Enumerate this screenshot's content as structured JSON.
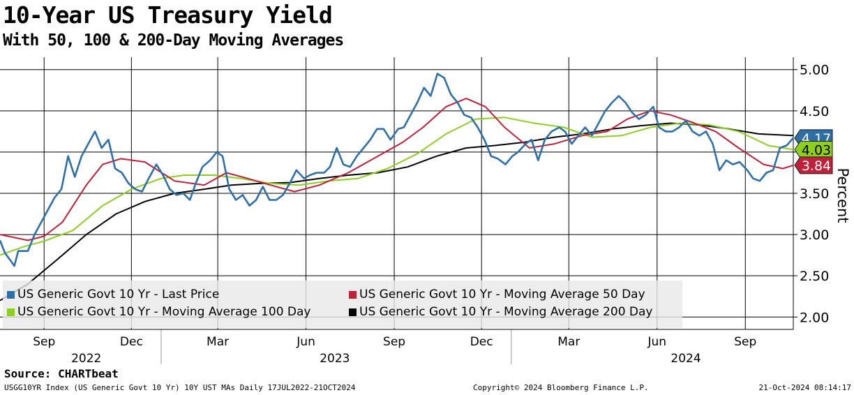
{
  "header": {
    "title": "10-Year US Treasury Yield",
    "subtitle": "With 50, 100 & 200-Day Moving Averages"
  },
  "footer": {
    "source": "Source: CHARTbeat",
    "index_info": "USGG10YR Index (US Generic Govt 10 Yr) 10Y UST MAs  Daily 17JUL2022-21OCT2024",
    "copyright": "Copyright© 2024 Bloomberg Finance L.P.",
    "timestamp": "21-Oct-2024 08:14:17"
  },
  "colors": {
    "last_price": "#2f6fa8",
    "ma50": "#c0213a",
    "ma100": "#8ccf1f",
    "ma200": "#000000",
    "badge_last": "#2f6fa8",
    "badge_ma100": "#8ccf1f",
    "badge_ma50": "#c0213a",
    "legend_bg": "#e8e8e8"
  },
  "chart_data": {
    "type": "line",
    "ylabel": "Percent",
    "y_axis_side": "right",
    "ylim": [
      1.85,
      5.15
    ],
    "yticks": [
      "2.00",
      "2.50",
      "3.00",
      "3.50",
      "4.00",
      "4.50",
      "5.00"
    ],
    "x_range": [
      "2022-07-17",
      "2024-10-21"
    ],
    "x_month_ticks": [
      {
        "date": "2022-09-01",
        "label": "Sep"
      },
      {
        "date": "2022-12-01",
        "label": "Dec"
      },
      {
        "date": "2023-03-01",
        "label": "Mar"
      },
      {
        "date": "2023-06-01",
        "label": "Jun"
      },
      {
        "date": "2023-09-01",
        "label": "Sep"
      },
      {
        "date": "2023-12-01",
        "label": "Dec"
      },
      {
        "date": "2024-03-01",
        "label": "Mar"
      },
      {
        "date": "2024-06-01",
        "label": "Jun"
      },
      {
        "date": "2024-09-01",
        "label": "Sep"
      }
    ],
    "x_year_labels": [
      {
        "date": "2022-10-15",
        "label": "2022"
      },
      {
        "date": "2023-07-01",
        "label": "2023"
      },
      {
        "date": "2024-07-01",
        "label": "2024"
      }
    ],
    "x_year_separators": [
      "2023-01-01",
      "2024-01-01"
    ],
    "grid": true,
    "legend_position": "bottom-left",
    "last_values": {
      "last_price": "4.17",
      "ma100": "4.03",
      "ma50": "3.84"
    },
    "series": [
      {
        "key": "last_price",
        "name": "US Generic Govt 10 Yr - Last Price",
        "points": [
          [
            "2022-07-17",
            2.93
          ],
          [
            "2022-07-22",
            2.78
          ],
          [
            "2022-08-01",
            2.62
          ],
          [
            "2022-08-05",
            2.8
          ],
          [
            "2022-08-15",
            2.8
          ],
          [
            "2022-08-22",
            3.0
          ],
          [
            "2022-08-29",
            3.15
          ],
          [
            "2022-09-05",
            3.3
          ],
          [
            "2022-09-12",
            3.45
          ],
          [
            "2022-09-19",
            3.55
          ],
          [
            "2022-09-26",
            3.95
          ],
          [
            "2022-10-03",
            3.7
          ],
          [
            "2022-10-10",
            3.95
          ],
          [
            "2022-10-17",
            4.1
          ],
          [
            "2022-10-24",
            4.25
          ],
          [
            "2022-10-31",
            4.05
          ],
          [
            "2022-11-07",
            4.15
          ],
          [
            "2022-11-14",
            3.8
          ],
          [
            "2022-11-21",
            3.75
          ],
          [
            "2022-11-28",
            3.62
          ],
          [
            "2022-12-05",
            3.55
          ],
          [
            "2022-12-12",
            3.52
          ],
          [
            "2022-12-19",
            3.68
          ],
          [
            "2022-12-27",
            3.85
          ],
          [
            "2023-01-03",
            3.72
          ],
          [
            "2023-01-10",
            3.55
          ],
          [
            "2023-01-17",
            3.48
          ],
          [
            "2023-01-24",
            3.5
          ],
          [
            "2023-01-31",
            3.42
          ],
          [
            "2023-02-06",
            3.62
          ],
          [
            "2023-02-13",
            3.82
          ],
          [
            "2023-02-21",
            3.9
          ],
          [
            "2023-02-28",
            4.0
          ],
          [
            "2023-03-06",
            3.95
          ],
          [
            "2023-03-13",
            3.55
          ],
          [
            "2023-03-20",
            3.42
          ],
          [
            "2023-03-27",
            3.48
          ],
          [
            "2023-04-03",
            3.35
          ],
          [
            "2023-04-10",
            3.42
          ],
          [
            "2023-04-17",
            3.58
          ],
          [
            "2023-04-24",
            3.42
          ],
          [
            "2023-05-01",
            3.42
          ],
          [
            "2023-05-08",
            3.48
          ],
          [
            "2023-05-15",
            3.62
          ],
          [
            "2023-05-22",
            3.78
          ],
          [
            "2023-05-30",
            3.68
          ],
          [
            "2023-06-05",
            3.72
          ],
          [
            "2023-06-12",
            3.75
          ],
          [
            "2023-06-20",
            3.75
          ],
          [
            "2023-06-26",
            3.82
          ],
          [
            "2023-07-03",
            4.05
          ],
          [
            "2023-07-10",
            3.85
          ],
          [
            "2023-07-17",
            3.82
          ],
          [
            "2023-07-24",
            3.95
          ],
          [
            "2023-07-31",
            4.05
          ],
          [
            "2023-08-07",
            4.15
          ],
          [
            "2023-08-14",
            4.28
          ],
          [
            "2023-08-21",
            4.28
          ],
          [
            "2023-08-28",
            4.15
          ],
          [
            "2023-09-05",
            4.28
          ],
          [
            "2023-09-11",
            4.3
          ],
          [
            "2023-09-18",
            4.45
          ],
          [
            "2023-09-25",
            4.6
          ],
          [
            "2023-10-02",
            4.78
          ],
          [
            "2023-10-09",
            4.68
          ],
          [
            "2023-10-16",
            4.95
          ],
          [
            "2023-10-23",
            4.9
          ],
          [
            "2023-10-30",
            4.7
          ],
          [
            "2023-11-06",
            4.6
          ],
          [
            "2023-11-13",
            4.45
          ],
          [
            "2023-11-20",
            4.42
          ],
          [
            "2023-11-27",
            4.3
          ],
          [
            "2023-12-04",
            4.15
          ],
          [
            "2023-12-11",
            3.95
          ],
          [
            "2023-12-18",
            3.92
          ],
          [
            "2023-12-26",
            3.85
          ],
          [
            "2024-01-02",
            3.95
          ],
          [
            "2024-01-08",
            4.0
          ],
          [
            "2024-01-16",
            4.1
          ],
          [
            "2024-01-22",
            4.15
          ],
          [
            "2024-01-29",
            3.9
          ],
          [
            "2024-02-05",
            4.15
          ],
          [
            "2024-02-12",
            4.25
          ],
          [
            "2024-02-20",
            4.3
          ],
          [
            "2024-02-26",
            4.25
          ],
          [
            "2024-03-04",
            4.1
          ],
          [
            "2024-03-11",
            4.2
          ],
          [
            "2024-03-18",
            4.3
          ],
          [
            "2024-03-25",
            4.2
          ],
          [
            "2024-04-01",
            4.35
          ],
          [
            "2024-04-08",
            4.5
          ],
          [
            "2024-04-15",
            4.6
          ],
          [
            "2024-04-22",
            4.68
          ],
          [
            "2024-04-29",
            4.6
          ],
          [
            "2024-05-06",
            4.48
          ],
          [
            "2024-05-13",
            4.4
          ],
          [
            "2024-05-20",
            4.45
          ],
          [
            "2024-05-28",
            4.55
          ],
          [
            "2024-06-03",
            4.3
          ],
          [
            "2024-06-10",
            4.25
          ],
          [
            "2024-06-17",
            4.25
          ],
          [
            "2024-06-24",
            4.3
          ],
          [
            "2024-07-01",
            4.38
          ],
          [
            "2024-07-08",
            4.25
          ],
          [
            "2024-07-15",
            4.2
          ],
          [
            "2024-07-22",
            4.25
          ],
          [
            "2024-07-29",
            4.1
          ],
          [
            "2024-08-05",
            3.78
          ],
          [
            "2024-08-12",
            3.9
          ],
          [
            "2024-08-19",
            3.85
          ],
          [
            "2024-08-26",
            3.88
          ],
          [
            "2024-09-03",
            3.78
          ],
          [
            "2024-09-09",
            3.68
          ],
          [
            "2024-09-16",
            3.65
          ],
          [
            "2024-09-23",
            3.75
          ],
          [
            "2024-09-30",
            3.78
          ],
          [
            "2024-10-07",
            4.05
          ],
          [
            "2024-10-14",
            4.08
          ],
          [
            "2024-10-21",
            4.17
          ]
        ]
      },
      {
        "key": "ma50",
        "name": "US Generic Govt 10 Yr - Moving Average 50 Day",
        "points": [
          [
            "2022-07-17",
            3.0
          ],
          [
            "2022-08-15",
            2.93
          ],
          [
            "2022-09-01",
            2.98
          ],
          [
            "2022-09-20",
            3.15
          ],
          [
            "2022-10-15",
            3.6
          ],
          [
            "2022-11-01",
            3.85
          ],
          [
            "2022-11-20",
            3.92
          ],
          [
            "2022-12-15",
            3.88
          ],
          [
            "2023-01-15",
            3.65
          ],
          [
            "2023-02-15",
            3.6
          ],
          [
            "2023-03-10",
            3.75
          ],
          [
            "2023-04-01",
            3.68
          ],
          [
            "2023-04-25",
            3.6
          ],
          [
            "2023-05-20",
            3.52
          ],
          [
            "2023-06-15",
            3.6
          ],
          [
            "2023-07-15",
            3.75
          ],
          [
            "2023-08-15",
            3.95
          ],
          [
            "2023-09-10",
            4.12
          ],
          [
            "2023-10-01",
            4.3
          ],
          [
            "2023-10-25",
            4.55
          ],
          [
            "2023-11-15",
            4.65
          ],
          [
            "2023-12-05",
            4.55
          ],
          [
            "2023-12-25",
            4.3
          ],
          [
            "2024-01-20",
            4.05
          ],
          [
            "2024-02-15",
            4.1
          ],
          [
            "2024-03-15",
            4.2
          ],
          [
            "2024-04-10",
            4.25
          ],
          [
            "2024-05-01",
            4.4
          ],
          [
            "2024-05-25",
            4.5
          ],
          [
            "2024-06-15",
            4.45
          ],
          [
            "2024-07-10",
            4.35
          ],
          [
            "2024-08-01",
            4.25
          ],
          [
            "2024-08-25",
            4.05
          ],
          [
            "2024-09-20",
            3.85
          ],
          [
            "2024-10-10",
            3.8
          ],
          [
            "2024-10-21",
            3.84
          ]
        ]
      },
      {
        "key": "ma100",
        "name": "US Generic Govt 10 Yr - Moving Average 100 Day",
        "points": [
          [
            "2022-07-17",
            2.75
          ],
          [
            "2022-08-10",
            2.85
          ],
          [
            "2022-09-01",
            2.92
          ],
          [
            "2022-10-01",
            3.05
          ],
          [
            "2022-11-01",
            3.35
          ],
          [
            "2022-12-01",
            3.55
          ],
          [
            "2023-01-01",
            3.68
          ],
          [
            "2023-01-25",
            3.72
          ],
          [
            "2023-02-25",
            3.72
          ],
          [
            "2023-03-25",
            3.68
          ],
          [
            "2023-04-25",
            3.62
          ],
          [
            "2023-05-25",
            3.6
          ],
          [
            "2023-06-25",
            3.65
          ],
          [
            "2023-07-25",
            3.68
          ],
          [
            "2023-08-25",
            3.8
          ],
          [
            "2023-09-25",
            3.98
          ],
          [
            "2023-10-25",
            4.22
          ],
          [
            "2023-11-25",
            4.4
          ],
          [
            "2023-12-25",
            4.42
          ],
          [
            "2024-01-25",
            4.35
          ],
          [
            "2024-02-25",
            4.3
          ],
          [
            "2024-03-25",
            4.18
          ],
          [
            "2024-04-25",
            4.2
          ],
          [
            "2024-05-25",
            4.3
          ],
          [
            "2024-06-25",
            4.35
          ],
          [
            "2024-07-25",
            4.33
          ],
          [
            "2024-08-25",
            4.25
          ],
          [
            "2024-09-25",
            4.08
          ],
          [
            "2024-10-21",
            4.03
          ]
        ]
      },
      {
        "key": "ma200",
        "name": "US Generic Govt 10 Yr - Moving Average 200 Day",
        "points": [
          [
            "2022-07-17",
            2.2
          ],
          [
            "2022-08-15",
            2.4
          ],
          [
            "2022-09-15",
            2.7
          ],
          [
            "2022-10-15",
            3.0
          ],
          [
            "2022-11-15",
            3.25
          ],
          [
            "2022-12-15",
            3.4
          ],
          [
            "2023-01-15",
            3.5
          ],
          [
            "2023-02-15",
            3.55
          ],
          [
            "2023-03-15",
            3.6
          ],
          [
            "2023-04-15",
            3.62
          ],
          [
            "2023-05-15",
            3.63
          ],
          [
            "2023-06-15",
            3.68
          ],
          [
            "2023-07-15",
            3.72
          ],
          [
            "2023-08-15",
            3.75
          ],
          [
            "2023-09-15",
            3.82
          ],
          [
            "2023-10-15",
            3.95
          ],
          [
            "2023-11-15",
            4.05
          ],
          [
            "2023-12-15",
            4.08
          ],
          [
            "2024-01-15",
            4.12
          ],
          [
            "2024-02-15",
            4.18
          ],
          [
            "2024-03-15",
            4.22
          ],
          [
            "2024-04-15",
            4.28
          ],
          [
            "2024-05-15",
            4.32
          ],
          [
            "2024-06-15",
            4.35
          ],
          [
            "2024-07-15",
            4.33
          ],
          [
            "2024-08-15",
            4.28
          ],
          [
            "2024-09-15",
            4.22
          ],
          [
            "2024-10-21",
            4.2
          ]
        ]
      }
    ]
  }
}
